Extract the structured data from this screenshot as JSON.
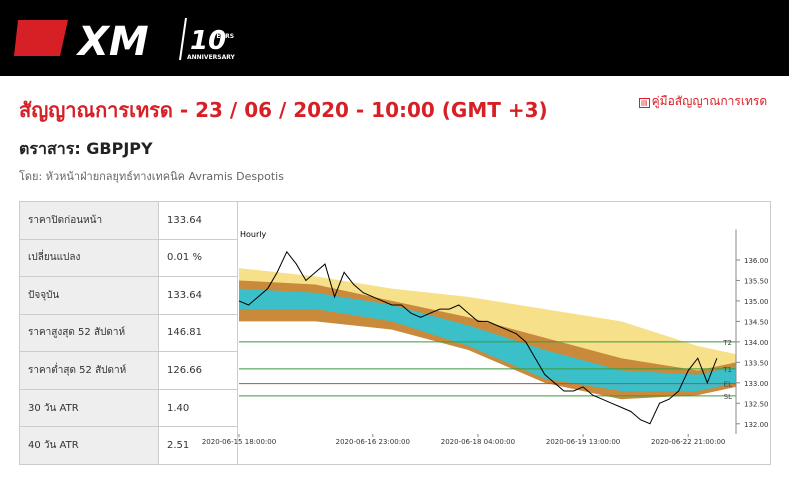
{
  "header": {
    "logo": "XM",
    "anniversary_number": "10",
    "anniversary_years": "YEARS",
    "anniversary_text": "ANNIVERSARY"
  },
  "title": "สัญญาณการเทรด - 23 / 06 / 2020 - 10:00 (GMT +3)",
  "guide_link": "คู่มือสัญญาณการเทรด",
  "instrument": "ตราสาร: GBPJPY",
  "byline": "โดย: หัวหน้าฝ่ายกลยุทธ์ทางเทคนิค Avramis Despotis",
  "table": {
    "rows": [
      [
        "ราคาปิดก่อนหน้า",
        "133.64"
      ],
      [
        "เปลี่ยนแปลง",
        "0.01 %"
      ],
      [
        "ปัจจุบัน",
        "133.64"
      ],
      [
        "ราคาสูงสุด 52 สัปดาห์",
        "146.81"
      ],
      [
        "ราคาต่ำสุด 52 สัปดาห์",
        "126.66"
      ],
      [
        "30 วัน ATR",
        "1.40"
      ],
      [
        "40 วัน ATR",
        "2.51"
      ]
    ]
  },
  "chart_data": {
    "type": "line",
    "title": "Hourly",
    "xlim": [
      0,
      52
    ],
    "xticks": [
      {
        "value": 0,
        "label": "2020-06-15 18:00:00"
      },
      {
        "value": 14,
        "label": "2020-06-16 23:00:00"
      },
      {
        "value": 25,
        "label": "2020-06-18 04:00:00"
      },
      {
        "value": 36,
        "label": "2020-06-19 13:00:00"
      },
      {
        "value": 47,
        "label": "2020-06-22 21:00:00"
      }
    ],
    "ylim": [
      131.75,
      136.5
    ],
    "yticks": [
      {
        "value": 132,
        "label": "132.00"
      },
      {
        "value": 132.5,
        "label": "132.50"
      },
      {
        "value": 133,
        "label": "133.00"
      },
      {
        "value": 133.5,
        "label": "133.50"
      },
      {
        "value": 134,
        "label": "134.00"
      },
      {
        "value": 134.5,
        "label": "134.50"
      },
      {
        "value": 135,
        "label": "135.00"
      },
      {
        "value": 135.5,
        "label": "135.50"
      },
      {
        "value": 136,
        "label": "136.00"
      }
    ],
    "series": [
      {
        "name": "GBPJPY",
        "color": "#000000",
        "values": [
          135.0,
          134.9,
          135.1,
          135.3,
          135.7,
          136.2,
          135.9,
          135.5,
          135.7,
          135.9,
          135.1,
          135.7,
          135.4,
          135.2,
          135.1,
          135.0,
          134.9,
          134.9,
          134.7,
          134.6,
          134.7,
          134.8,
          134.8,
          134.9,
          134.7,
          134.5,
          134.5,
          134.4,
          134.3,
          134.2,
          134.0,
          133.6,
          133.2,
          133.0,
          132.8,
          132.8,
          132.9,
          132.7,
          132.6,
          132.5,
          132.4,
          132.3,
          132.1,
          132.0,
          132.5,
          132.6,
          132.8,
          133.3,
          133.6,
          133.0,
          133.6
        ]
      }
    ],
    "bands": {
      "x": [
        0,
        8,
        16,
        24,
        32,
        40,
        48,
        52
      ],
      "series": [
        {
          "color": "#f7e08a",
          "upper": [
            135.8,
            135.6,
            135.3,
            135.1,
            134.8,
            134.5,
            133.9,
            133.7
          ],
          "lower": [
            135.4,
            135.0,
            134.7,
            134.2,
            133.5,
            132.9,
            132.8,
            133.1
          ]
        },
        {
          "color": "#c98a3c",
          "upper": [
            135.5,
            135.4,
            135.0,
            134.6,
            134.1,
            133.6,
            133.3,
            133.5
          ],
          "lower": [
            134.5,
            134.5,
            134.3,
            133.8,
            133.0,
            132.6,
            132.7,
            132.9
          ]
        },
        {
          "color": "#3bbfc8",
          "upper": [
            135.3,
            135.2,
            134.9,
            134.4,
            133.8,
            133.3,
            133.2,
            133.4
          ],
          "lower": [
            134.8,
            134.8,
            134.5,
            133.9,
            133.1,
            132.8,
            132.8,
            133.0
          ]
        }
      ]
    },
    "levels": [
      {
        "name": "T2",
        "value": 134.0,
        "color": "#3a9a3a"
      },
      {
        "name": "T1",
        "value": 133.34,
        "color": "#3a9a3a"
      },
      {
        "name": "EL",
        "value": 132.98,
        "color": "#d04040"
      },
      {
        "name": "SL",
        "value": 132.68,
        "color": "#3a9a3a"
      }
    ]
  }
}
